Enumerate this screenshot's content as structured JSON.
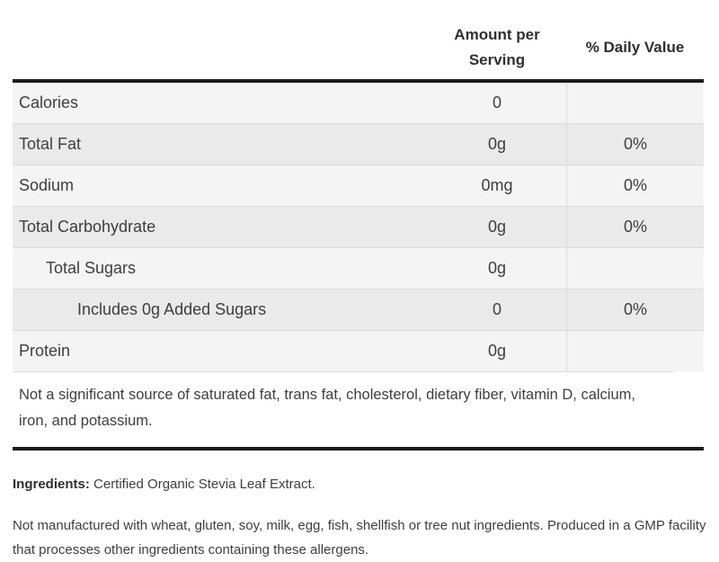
{
  "colors": {
    "row_stripe_light": "#f4f4f4",
    "row_stripe_dark": "#eaeaea",
    "row_divider": "#dcdcdc",
    "heavy_border": "#1c1c1c",
    "text": "#3e3e3e"
  },
  "nutrition_table": {
    "header": {
      "amount_column": "Amount per Serving",
      "daily_value_column": "% Daily Value"
    },
    "rows": [
      {
        "label": "Calories",
        "amount": "0",
        "daily_value": ""
      },
      {
        "label": "Total Fat",
        "amount": "0g",
        "daily_value": "0%"
      },
      {
        "label": "Sodium",
        "amount": "0mg",
        "daily_value": "0%"
      },
      {
        "label": "Total Carbohydrate",
        "amount": "0g",
        "daily_value": "0%"
      },
      {
        "label": "Total Sugars",
        "amount": "0g",
        "daily_value": ""
      },
      {
        "label": "Includes 0g Added Sugars",
        "amount": "0",
        "daily_value": "0%"
      },
      {
        "label": "Protein",
        "amount": "0g",
        "daily_value": ""
      }
    ],
    "footnote": "Not a significant source of saturated fat, trans fat, cholesterol, dietary fiber, vitamin D, calcium, iron, and potassium."
  },
  "ingredients": {
    "label": "Ingredients:",
    "value": "Certified Organic Stevia Leaf Extract."
  },
  "allergen_statement": "Not manufactured with wheat, gluten, soy, milk, egg, fish, shellfish or tree nut ingredients. Produced in a GMP facility that processes other ingredients containing these allergens."
}
